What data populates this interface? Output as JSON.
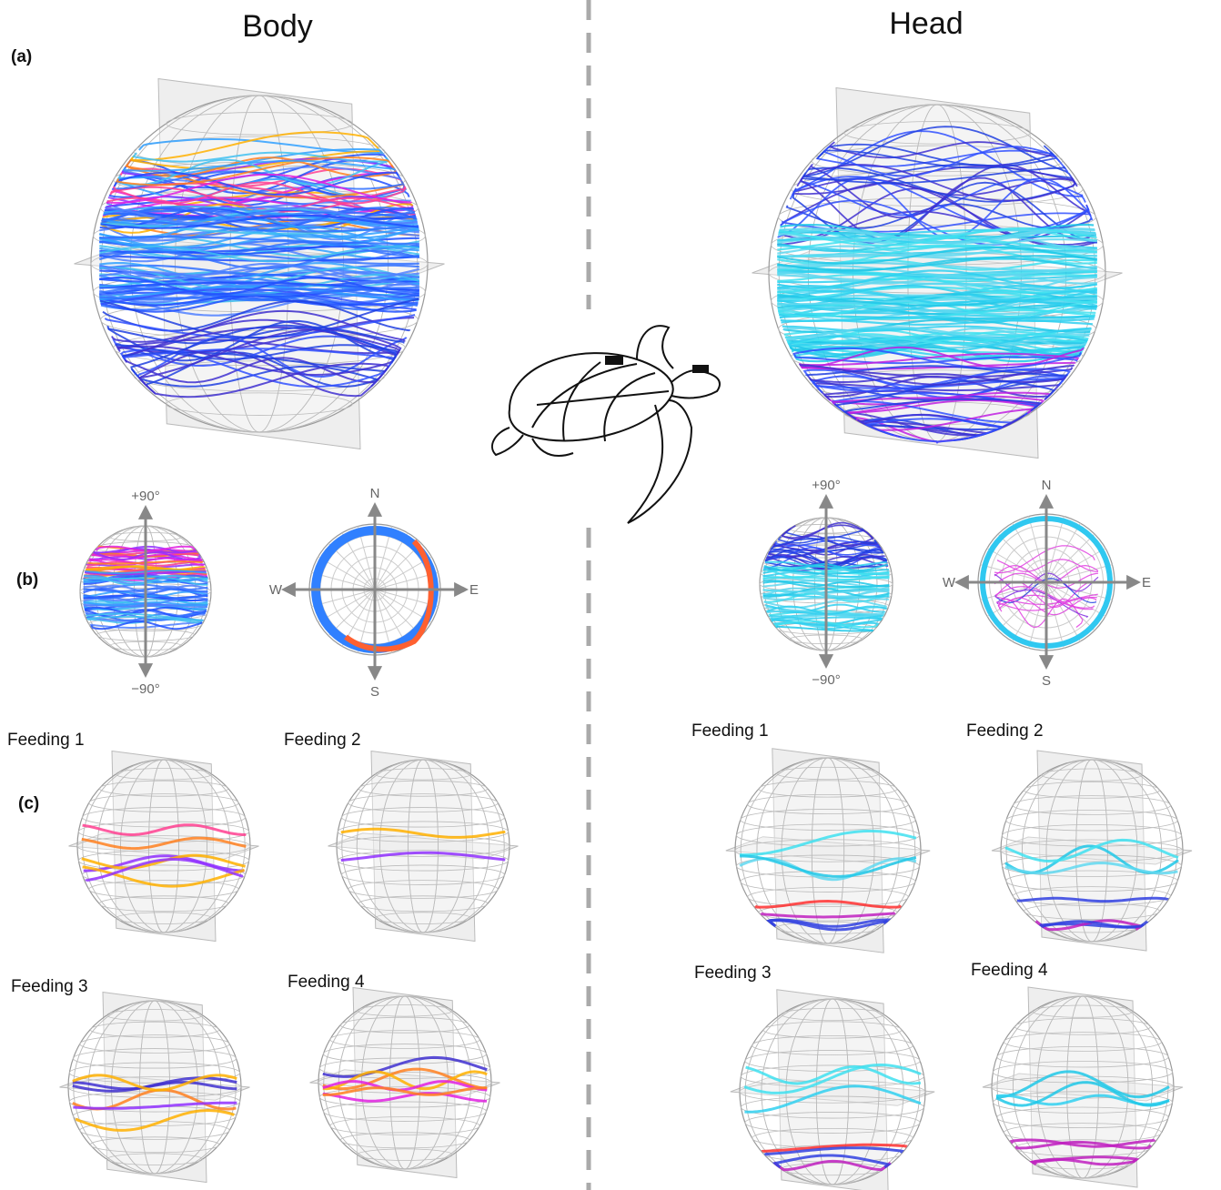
{
  "panel_labels": [
    "(a)",
    "(b)",
    "(c)"
  ],
  "columns": [
    {
      "title": "Body",
      "pitch_labels": [
        "+90°",
        "−90°"
      ],
      "compass": [
        "N",
        "S",
        "W",
        "E"
      ],
      "feedings": [
        "Feeding 1",
        "Feeding 2",
        "Feeding 3",
        "Feeding 4"
      ]
    },
    {
      "title": "Head",
      "pitch_labels": [
        "+90°",
        "−90°"
      ],
      "compass": [
        "N",
        "S",
        "W",
        "E"
      ],
      "feedings": [
        "Feeding 1",
        "Feeding 2",
        "Feeding 3",
        "Feeding 4"
      ]
    }
  ]
}
